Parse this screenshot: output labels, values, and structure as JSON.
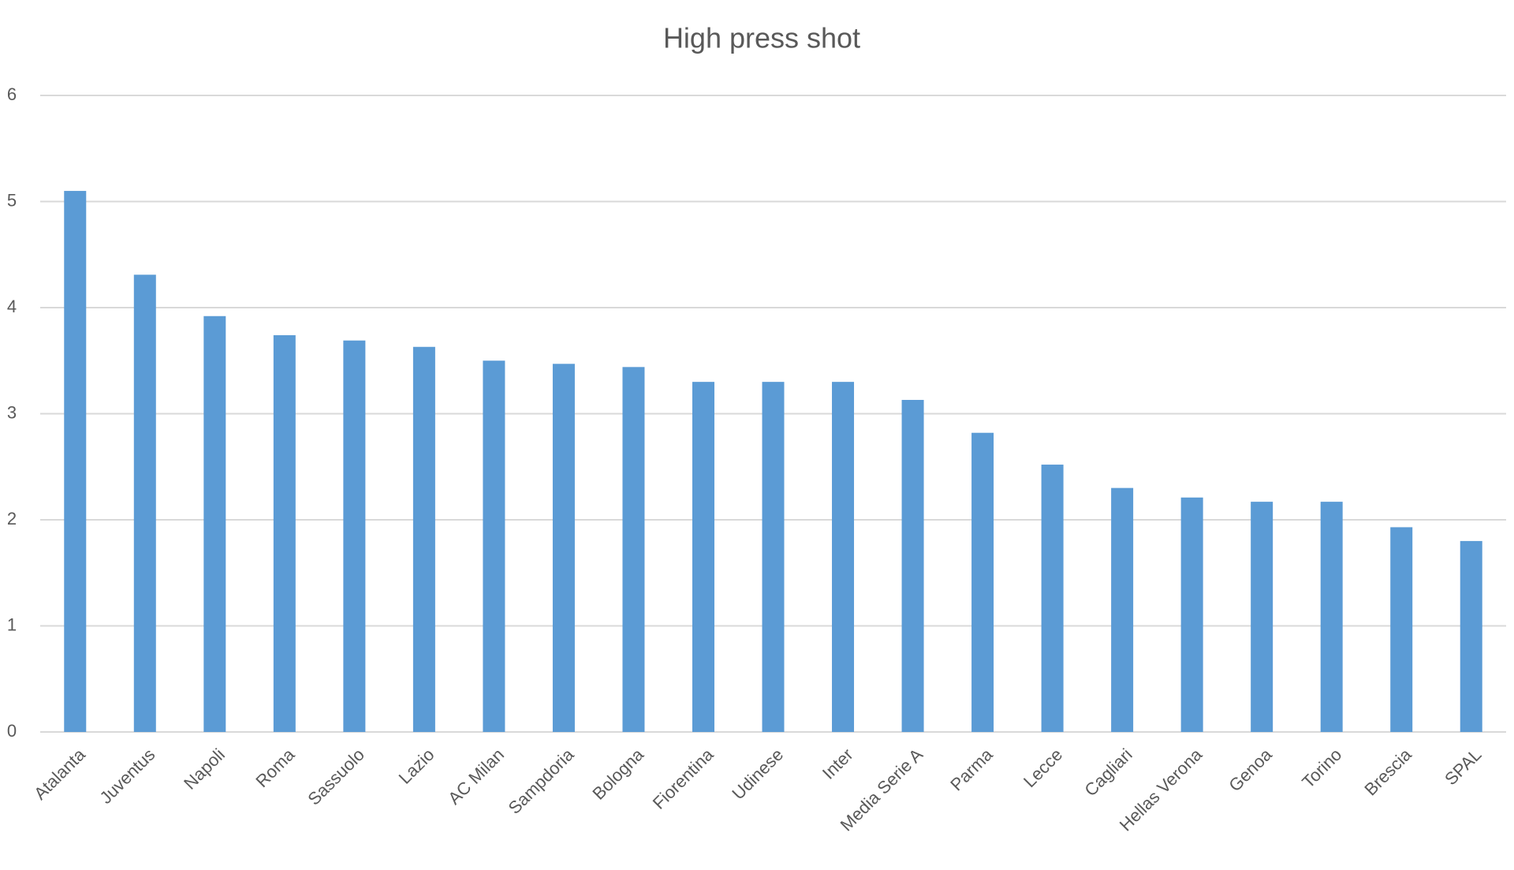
{
  "chart_data": {
    "type": "bar",
    "title": "High press shot",
    "categories": [
      "Atalanta",
      "Juventus",
      "Napoli",
      "Roma",
      "Sassuolo",
      "Lazio",
      "AC Milan",
      "Sampdoria",
      "Bologna",
      "Fiorentina",
      "Udinese",
      "Inter",
      "Media Serie A",
      "Parma",
      "Lecce",
      "Cagliari",
      "Hellas Verona",
      "Genoa",
      "Torino",
      "Brescia",
      "SPAL"
    ],
    "values": [
      5.1,
      4.31,
      3.92,
      3.74,
      3.69,
      3.63,
      3.5,
      3.47,
      3.44,
      3.3,
      3.3,
      3.3,
      3.13,
      2.82,
      2.52,
      2.3,
      2.21,
      2.17,
      2.17,
      1.93,
      1.8
    ],
    "color": "#5b9bd5",
    "ylim": [
      0,
      6
    ],
    "yticks": [
      0,
      1,
      2,
      3,
      4,
      5,
      6
    ],
    "grid": true
  }
}
